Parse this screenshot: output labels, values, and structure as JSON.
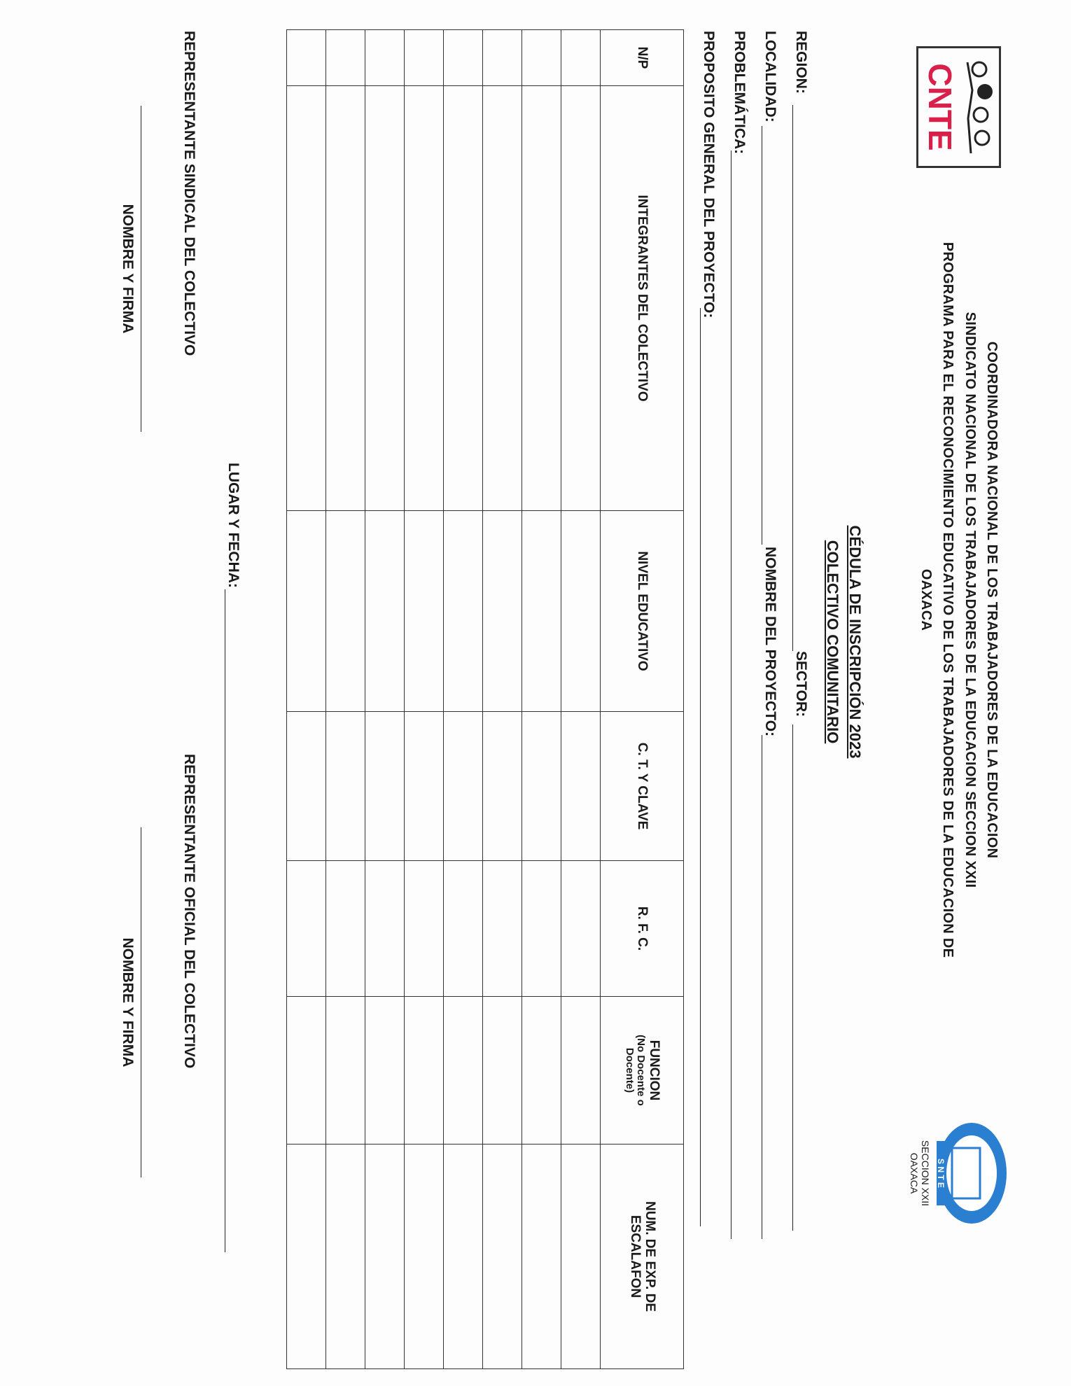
{
  "header": {
    "logo_left": "CNTE",
    "lines": [
      "COORDINADORA NACIONAL DE LOS TRABAJADORES DE LA EDUCACION",
      "SINDICATO NACIONAL DE LOS TRABAJADORES DE LA EDUCACION SECCION XXII",
      "PROGRAMA PARA EL RECONOCIMIENTO EDUCATIVO DE LOS TRABAJADORES DE LA EDUCACION DE",
      "OAXACA"
    ],
    "logo_right": {
      "letters": "S N T E",
      "line1": "SECCION XXII",
      "line2": "OAXACA"
    }
  },
  "title": {
    "line1": "CÉDULA DE INSCRIPCIÓN 2023",
    "line2": "COLECTIVO COMUNITARIO"
  },
  "fields": {
    "region": "REGION:",
    "sector": "SECTOR:",
    "localidad": "LOCALIDAD:",
    "nombre_proyecto": "NOMBRE DEL PROYECTO:",
    "problematica": "PROBLEMÁTICA:",
    "proposito": "PROPOSITO GENERAL DEL PROYECTO:",
    "lugar_fecha": "LUGAR Y FECHA:"
  },
  "table": {
    "headers": [
      "N/P",
      "INTEGRANTES DEL COLECTIVO",
      "NIVEL EDUCATIVO",
      "C. T. Y CLAVE",
      "R. F. C.",
      "FUNCION",
      "NUM. DE EXP. DE ESCALAFON"
    ],
    "funcion_note": "(No Docente o Docente)",
    "rows": 8
  },
  "signatures": {
    "left_title": "REPRESENTANTE SINDICAL DEL COLECTIVO",
    "right_title": "REPRESENTANTE OFICIAL DEL COLECTIVO",
    "left_caption": "NOMBRE Y FIRMA",
    "right_caption": "NOMBRE Y FIRMA"
  },
  "colors": {
    "cnte_red": "#d8204a",
    "snte_blue": "#2a7fd0"
  }
}
